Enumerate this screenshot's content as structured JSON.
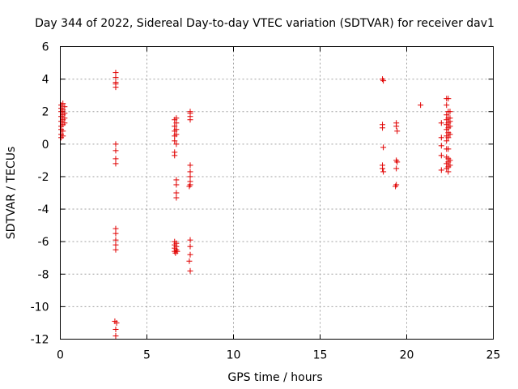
{
  "chart_data": {
    "type": "scatter",
    "title": "Day 344 of 2022, Sidereal Day-to-day VTEC variation (SDTVAR) for receiver dav1",
    "xlabel": "GPS time / hours",
    "ylabel": "SDTVAR / TECUs",
    "xlim": [
      0,
      25
    ],
    "ylim": [
      -12,
      6
    ],
    "xticks": [
      0,
      5,
      10,
      15,
      20,
      25
    ],
    "yticks": [
      -12,
      -10,
      -8,
      -6,
      -4,
      -2,
      0,
      2,
      4,
      6
    ],
    "grid": true,
    "marker": "+",
    "colors": {
      "series": "#e00000",
      "grid": "#a0a0a0",
      "axes": "#000000"
    },
    "series": [
      {
        "name": "SDTVAR",
        "points": [
          [
            0.05,
            2.4
          ],
          [
            0.05,
            2.2
          ],
          [
            0.05,
            2.0
          ],
          [
            0.05,
            1.7
          ],
          [
            0.05,
            1.4
          ],
          [
            0.05,
            1.1
          ],
          [
            0.05,
            0.9
          ],
          [
            0.05,
            0.6
          ],
          [
            0.05,
            0.4
          ],
          [
            0.15,
            2.5
          ],
          [
            0.15,
            2.1
          ],
          [
            0.15,
            1.8
          ],
          [
            0.15,
            1.5
          ],
          [
            0.15,
            1.2
          ],
          [
            0.15,
            0.8
          ],
          [
            0.15,
            0.5
          ],
          [
            0.25,
            2.3
          ],
          [
            0.25,
            1.9
          ],
          [
            0.25,
            1.6
          ],
          [
            0.25,
            1.3
          ],
          [
            3.2,
            4.4
          ],
          [
            3.2,
            4.1
          ],
          [
            3.2,
            3.8
          ],
          [
            3.2,
            3.5
          ],
          [
            3.2,
            3.7
          ],
          [
            3.2,
            0.0
          ],
          [
            3.2,
            -0.4
          ],
          [
            3.2,
            -0.9
          ],
          [
            3.2,
            -1.2
          ],
          [
            3.2,
            -5.2
          ],
          [
            3.2,
            -5.5
          ],
          [
            3.2,
            -5.9
          ],
          [
            3.2,
            -6.2
          ],
          [
            3.2,
            -6.5
          ],
          [
            3.15,
            -10.9
          ],
          [
            3.25,
            -11.0
          ],
          [
            3.2,
            -11.4
          ],
          [
            3.2,
            -11.8
          ],
          [
            6.6,
            1.5
          ],
          [
            6.6,
            1.1
          ],
          [
            6.6,
            0.8
          ],
          [
            6.6,
            0.5
          ],
          [
            6.6,
            0.2
          ],
          [
            6.6,
            -0.5
          ],
          [
            6.6,
            -0.7
          ],
          [
            6.7,
            1.6
          ],
          [
            6.7,
            1.3
          ],
          [
            6.7,
            0.9
          ],
          [
            6.7,
            0.6
          ],
          [
            6.7,
            0.0
          ],
          [
            6.7,
            -2.2
          ],
          [
            6.7,
            -2.5
          ],
          [
            6.7,
            -3.0
          ],
          [
            6.7,
            -3.3
          ],
          [
            6.6,
            -6.0
          ],
          [
            6.6,
            -6.2
          ],
          [
            6.6,
            -6.4
          ],
          [
            6.6,
            -6.6
          ],
          [
            6.65,
            -6.7
          ],
          [
            6.7,
            -6.1
          ],
          [
            6.7,
            -6.3
          ],
          [
            6.7,
            -6.5
          ],
          [
            6.75,
            -6.6
          ],
          [
            7.5,
            2.0
          ],
          [
            7.5,
            1.7
          ],
          [
            7.5,
            1.5
          ],
          [
            7.5,
            1.9
          ],
          [
            7.5,
            -1.3
          ],
          [
            7.5,
            -1.7
          ],
          [
            7.5,
            -2.0
          ],
          [
            7.5,
            -2.3
          ],
          [
            7.5,
            -2.5
          ],
          [
            7.45,
            -2.6
          ],
          [
            7.5,
            -5.9
          ],
          [
            7.5,
            -6.3
          ],
          [
            7.5,
            -6.8
          ],
          [
            7.45,
            -7.2
          ],
          [
            7.5,
            -7.8
          ],
          [
            18.6,
            4.0
          ],
          [
            18.65,
            3.9
          ],
          [
            18.6,
            1.2
          ],
          [
            18.6,
            1.0
          ],
          [
            18.65,
            -0.2
          ],
          [
            18.6,
            -1.3
          ],
          [
            18.6,
            -1.5
          ],
          [
            18.65,
            -1.7
          ],
          [
            19.4,
            1.3
          ],
          [
            19.4,
            1.1
          ],
          [
            19.45,
            0.8
          ],
          [
            19.4,
            -1.0
          ],
          [
            19.45,
            -1.1
          ],
          [
            19.4,
            -1.5
          ],
          [
            19.4,
            -2.5
          ],
          [
            19.35,
            -2.6
          ],
          [
            20.8,
            2.4
          ],
          [
            22.0,
            1.3
          ],
          [
            22.0,
            0.4
          ],
          [
            22.0,
            -0.1
          ],
          [
            22.0,
            -0.7
          ],
          [
            22.0,
            -1.6
          ],
          [
            22.3,
            2.8
          ],
          [
            22.3,
            2.4
          ],
          [
            22.3,
            1.8
          ],
          [
            22.3,
            1.5
          ],
          [
            22.3,
            1.2
          ],
          [
            22.3,
            0.9
          ],
          [
            22.3,
            0.5
          ],
          [
            22.3,
            0.2
          ],
          [
            22.3,
            -0.3
          ],
          [
            22.3,
            -0.8
          ],
          [
            22.3,
            -1.2
          ],
          [
            22.3,
            -1.5
          ],
          [
            22.4,
            2.8
          ],
          [
            22.4,
            2.0
          ],
          [
            22.4,
            1.6
          ],
          [
            22.4,
            1.3
          ],
          [
            22.4,
            1.0
          ],
          [
            22.4,
            0.7
          ],
          [
            22.4,
            0.4
          ],
          [
            22.4,
            -0.3
          ],
          [
            22.4,
            -0.9
          ],
          [
            22.4,
            -1.1
          ],
          [
            22.4,
            -1.4
          ],
          [
            22.4,
            -1.7
          ],
          [
            22.5,
            2.0
          ],
          [
            22.5,
            1.6
          ],
          [
            22.5,
            1.4
          ],
          [
            22.5,
            1.1
          ],
          [
            22.5,
            0.6
          ],
          [
            22.5,
            -1.0
          ],
          [
            22.5,
            -1.3
          ]
        ]
      }
    ]
  }
}
